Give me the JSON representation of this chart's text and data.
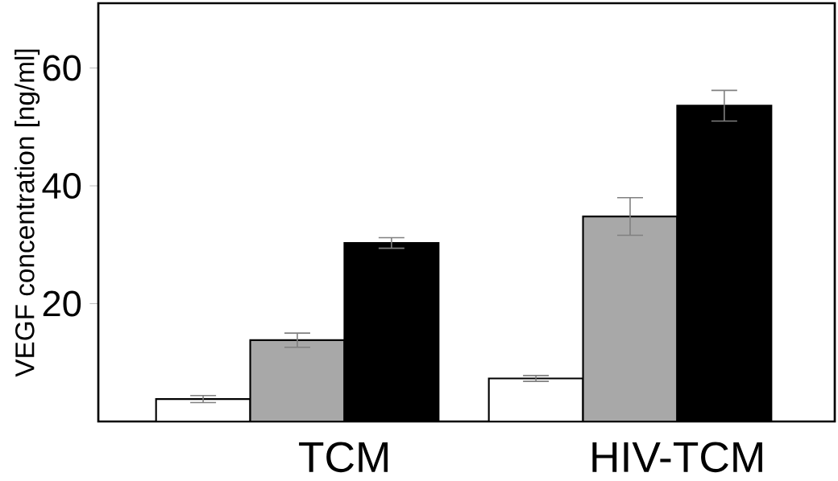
{
  "chart_data": {
    "type": "bar",
    "ylabel": "VEGF concentration [ng/ml]",
    "categories": [
      "TCM",
      "HIV-TCM"
    ],
    "series": [
      {
        "color": "#ffffff",
        "values": [
          3.8,
          7.3
        ],
        "errors": [
          0.6,
          0.5
        ]
      },
      {
        "color": "#a8a8a8",
        "values": [
          13.8,
          34.8
        ],
        "errors": [
          1.2,
          3.2
        ]
      },
      {
        "color": "#000000",
        "values": [
          30.3,
          53.6
        ],
        "errors": [
          0.9,
          2.6
        ]
      }
    ],
    "ylim": [
      0,
      71
    ],
    "yticks": [
      20,
      40,
      60
    ]
  }
}
